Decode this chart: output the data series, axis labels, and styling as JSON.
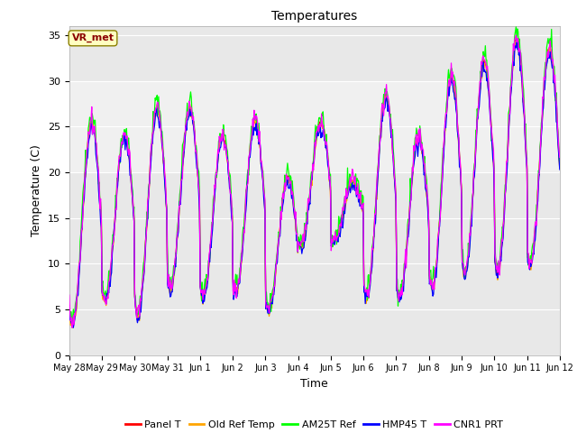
{
  "title": "Temperatures",
  "xlabel": "Time",
  "ylabel": "Temperature (C)",
  "annotation": "VR_met",
  "ylim": [
    0,
    36
  ],
  "yticks": [
    0,
    5,
    10,
    15,
    20,
    25,
    30,
    35
  ],
  "plot_bg_color": "#e8e8e8",
  "lighter_band": [
    20,
    30
  ],
  "series_colors": [
    "red",
    "orange",
    "lime",
    "blue",
    "magenta"
  ],
  "series_labels": [
    "Panel T",
    "Old Ref Temp",
    "AM25T Ref",
    "HMP45 T",
    "CNR1 PRT"
  ],
  "x_tick_labels": [
    "May 28",
    "May 29",
    "May 30",
    "May 31",
    "Jun 1",
    "Jun 2",
    "Jun 3",
    "Jun 4",
    "Jun 5",
    "Jun 6",
    "Jun 7",
    "Jun 8",
    "Jun 9",
    "Jun 10",
    "Jun 11",
    "Jun 12"
  ],
  "n_days": 15,
  "pts_per_day": 48,
  "figsize": [
    6.4,
    4.8
  ],
  "dpi": 100,
  "day_maxima": [
    25.5,
    24.0,
    27.0,
    27.0,
    24.0,
    25.5,
    19.5,
    25.5,
    19.0,
    28.5,
    24.0,
    30.5,
    32.0,
    34.5,
    33.5
  ],
  "day_minima": [
    3.5,
    6.0,
    4.5,
    7.5,
    6.5,
    7.0,
    5.0,
    12.0,
    12.5,
    6.5,
    6.5,
    7.5,
    9.0,
    9.0,
    10.0
  ]
}
